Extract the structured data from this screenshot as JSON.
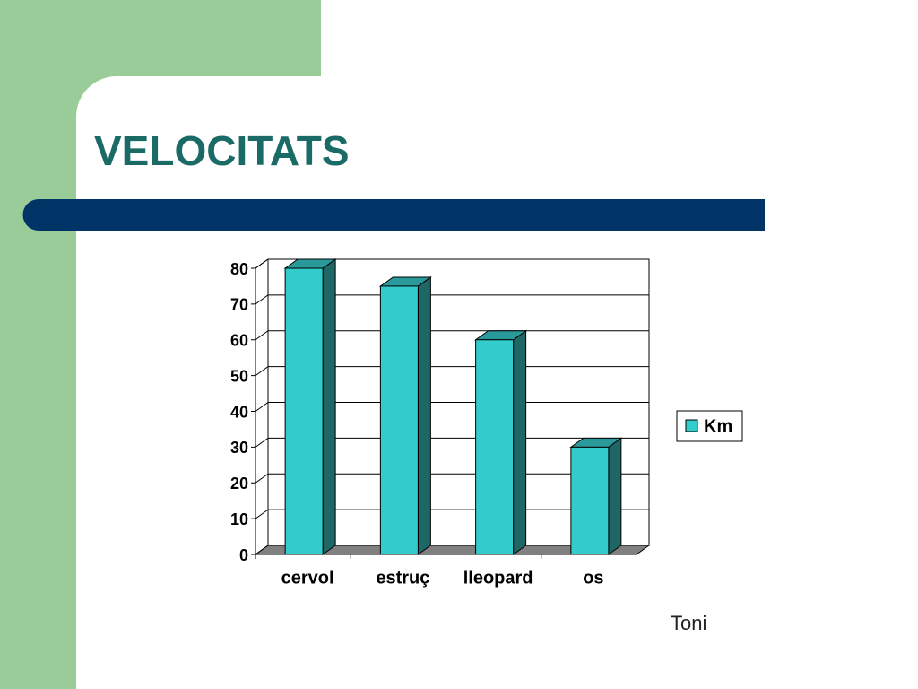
{
  "slide": {
    "title": "VELOCITATS",
    "author": "Toni"
  },
  "chart_data": {
    "type": "bar3d",
    "categories": [
      "cervol",
      "estruç",
      "lleopard",
      "os"
    ],
    "series": [
      {
        "name": "Km",
        "color": "#33cccc",
        "values": [
          80,
          75,
          60,
          30
        ]
      }
    ],
    "ylim": [
      0,
      80
    ],
    "yticks": [
      0,
      10,
      20,
      30,
      40,
      50,
      60,
      70,
      80
    ],
    "grid": true,
    "legend": "right"
  }
}
